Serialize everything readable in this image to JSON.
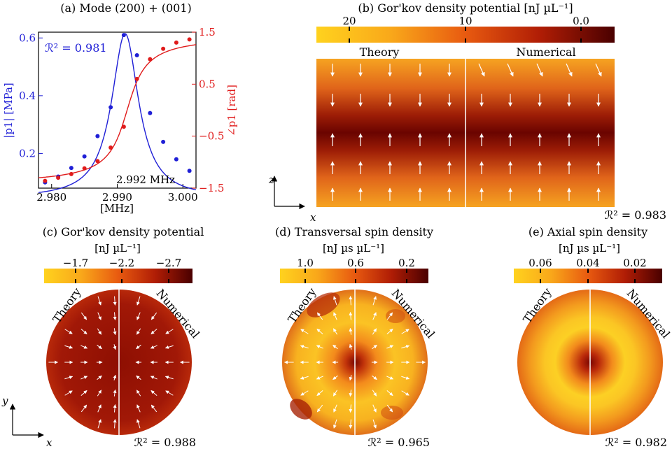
{
  "chart_data": [
    {
      "id": "a",
      "type": "line",
      "title": "(a) Mode (200) + (001)",
      "xlabel": "[MHz]",
      "ylabel_left": "|p1| [MPa]",
      "ylabel_right": "∠p1 [rad]",
      "xlim": [
        2.978,
        3.002
      ],
      "ylim_left": [
        0.08,
        0.62
      ],
      "ylim_right": [
        -1.5,
        1.5
      ],
      "x_ticks": [
        "2.980",
        "2.990",
        "3.000"
      ],
      "y_ticks_left": [
        "0.2",
        "0.4",
        "0.6"
      ],
      "y_ticks_right": [
        "-1.5",
        "-0.5",
        "0.5",
        "1.5"
      ],
      "r2": "ℛ² = 0.981",
      "annotation": "2.992 MHz",
      "series": [
        {
          "name": "|p1| measured",
          "axis": "left",
          "color": "#1f1fd6",
          "style": "points",
          "x": [
            2.979,
            2.981,
            2.983,
            2.985,
            2.987,
            2.989,
            2.991,
            2.993,
            2.995,
            2.997,
            2.999,
            3.001
          ],
          "y": [
            0.1,
            0.12,
            0.15,
            0.19,
            0.26,
            0.36,
            0.61,
            0.54,
            0.34,
            0.24,
            0.18,
            0.14
          ]
        },
        {
          "name": "|p1| fit",
          "axis": "left",
          "color": "#1f1fd6",
          "style": "line",
          "model": "lorentz",
          "params": {
            "base": 0.045,
            "amp": 0.57,
            "center": 2.9912,
            "width": 0.0025
          }
        },
        {
          "name": "∠p1 measured",
          "axis": "right",
          "color": "#e01b1b",
          "style": "points",
          "x": [
            2.979,
            2.981,
            2.983,
            2.985,
            2.987,
            2.989,
            2.991,
            2.993,
            2.995,
            2.997,
            2.999,
            3.001
          ],
          "y": [
            -1.36,
            -1.3,
            -1.23,
            -1.12,
            -0.98,
            -0.72,
            -0.32,
            0.6,
            0.98,
            1.18,
            1.3,
            1.36
          ]
        },
        {
          "name": "∠p1 fit",
          "axis": "right",
          "color": "#e01b1b",
          "style": "line",
          "model": "arctan",
          "params": {
            "center": 2.9915,
            "width": 0.0022
          }
        }
      ]
    },
    {
      "id": "b",
      "type": "heatmap",
      "title": "(b) Gor'kov density potential [nJ µL⁻¹]",
      "colorbar_ticks": [
        "20",
        "10",
        "0.0"
      ],
      "left_label": "Theory",
      "right_label": "Numerical",
      "axis_x": "x",
      "axis_z": "z",
      "r2": "ℛ² = 0.983"
    },
    {
      "id": "c",
      "type": "heatmap",
      "title": "(c) Gor'kov density potential",
      "units": "[nJ µL⁻¹]",
      "colorbar_ticks": [
        "−1.7",
        "−2.2",
        "−2.7"
      ],
      "left_label": "Theory",
      "right_label": "Numerical",
      "axis_x": "x",
      "axis_y": "y",
      "r2": "ℛ² = 0.988"
    },
    {
      "id": "d",
      "type": "heatmap",
      "title": "(d) Transversal spin density",
      "units": "[nJ µs µL⁻¹]",
      "colorbar_ticks": [
        "1.0",
        "0.6",
        "0.2"
      ],
      "left_label": "Theory",
      "right_label": "Numerical",
      "r2": "ℛ² = 0.965"
    },
    {
      "id": "e",
      "type": "heatmap",
      "title": "(e) Axial spin density",
      "units": "[nJ µs µL⁻¹]",
      "colorbar_ticks": [
        "0.06",
        "0.04",
        "0.02"
      ],
      "left_label": "Theory",
      "right_label": "Numerical",
      "r2": "ℛ² = 0.982"
    }
  ]
}
